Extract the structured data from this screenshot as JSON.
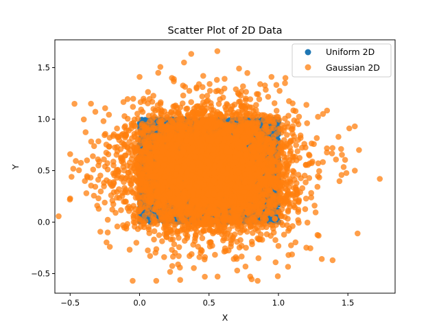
{
  "colors": {
    "uniform": "#1f77b4",
    "gaussian": "#ff7f0e",
    "axes": "#000000",
    "background": "#ffffff",
    "legend_border": "#cccccc"
  },
  "chart_data": {
    "type": "scatter",
    "title": "Scatter Plot of 2D Data",
    "xlabel": "X",
    "ylabel": "Y",
    "xlim": [
      -0.61,
      1.84
    ],
    "ylim": [
      -0.69,
      1.77
    ],
    "xticks": [
      -0.5,
      0.0,
      0.5,
      1.0,
      1.5
    ],
    "xtick_labels": [
      "−0.5",
      "0.0",
      "0.5",
      "1.0",
      "1.5"
    ],
    "yticks": [
      -0.5,
      0.0,
      0.5,
      1.0,
      1.5
    ],
    "ytick_labels": [
      "−0.5",
      "0.0",
      "0.5",
      "1.0",
      "1.5"
    ],
    "grid": false,
    "legend_position": "upper right",
    "series": [
      {
        "name": "Uniform 2D",
        "color": "#1f77b4",
        "opacity": 1.0,
        "distribution": "uniform",
        "x_range": [
          0,
          1
        ],
        "y_range": [
          0,
          1
        ],
        "n": 5000,
        "points": [
          [
            0.02,
            0.01
          ],
          [
            0.98,
            0.01
          ],
          [
            0.02,
            0.99
          ],
          [
            0.99,
            0.98
          ],
          [
            0.01,
            0.5
          ],
          [
            0.99,
            0.5
          ],
          [
            0.5,
            0.01
          ],
          [
            0.5,
            0.99
          ],
          [
            0.05,
            0.05
          ],
          [
            0.95,
            0.05
          ],
          [
            0.96,
            0.9
          ],
          [
            0.04,
            0.93
          ]
        ]
      },
      {
        "name": "Gaussian 2D",
        "color": "#ff7f0e",
        "opacity": 0.75,
        "distribution": "gaussian",
        "mean": [
          0.5,
          0.5
        ],
        "std": [
          0.3,
          0.3
        ],
        "n": 5000,
        "points": [
          [
            0.56,
            1.66
          ],
          [
            0.32,
            1.55
          ],
          [
            1.73,
            0.42
          ],
          [
            1.57,
            -0.11
          ],
          [
            -0.05,
            -0.57
          ],
          [
            0.12,
            -0.57
          ],
          [
            0.85,
            -0.57
          ],
          [
            1.39,
            -0.37
          ],
          [
            -0.49,
            0.44
          ],
          [
            -0.5,
            0.23
          ],
          [
            -0.5,
            0.66
          ],
          [
            1.58,
            0.7
          ],
          [
            1.51,
            0.91
          ],
          [
            1.55,
            0.93
          ],
          [
            1.55,
            0.5
          ],
          [
            0.47,
            -0.53
          ],
          [
            -0.35,
            1.15
          ],
          [
            0.0,
            1.41
          ],
          [
            0.95,
            1.41
          ],
          [
            1.05,
            1.4
          ]
        ]
      }
    ]
  }
}
